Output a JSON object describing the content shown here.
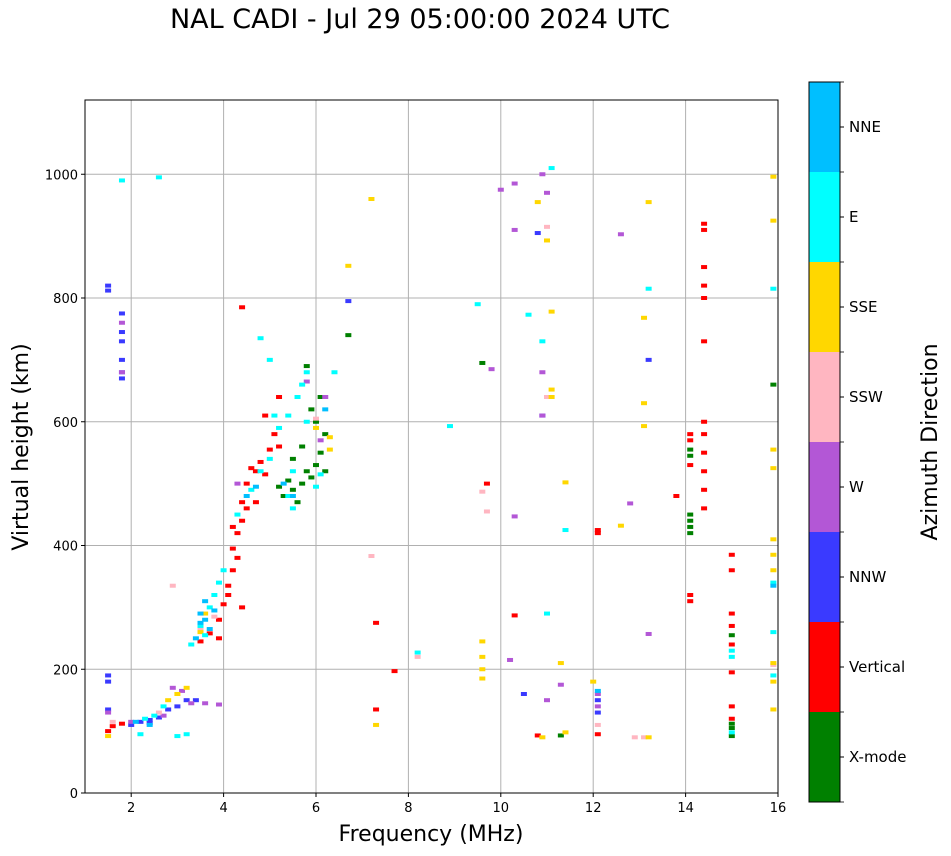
{
  "chart_data": {
    "type": "scatter",
    "title": "NAL CADI - Jul 29 05:00:00 2024 UTC",
    "xlabel": "Frequency (MHz)",
    "ylabel": "Virtual height (km)",
    "xlim": [
      1,
      16
    ],
    "ylim": [
      0,
      1120
    ],
    "x_ticks": [
      2,
      4,
      6,
      8,
      10,
      12,
      14,
      16
    ],
    "y_ticks": [
      0,
      200,
      400,
      600,
      800,
      1000
    ],
    "grid": true,
    "colorbar": {
      "title": "Azimuth Direction",
      "categories": [
        "X-mode",
        "Vertical",
        "NNW",
        "W",
        "SSW",
        "SSE",
        "E",
        "NNE"
      ],
      "colors": [
        "#008000",
        "#ff0000",
        "#3a3aff",
        "#b357d6",
        "#ffb6c1",
        "#ffd700",
        "#00ffff",
        "#00bfff"
      ]
    },
    "series": [
      {
        "name": "X-mode",
        "points": [
          [
            5.3,
            480
          ],
          [
            5.5,
            490
          ],
          [
            5.7,
            500
          ],
          [
            5.9,
            510
          ],
          [
            6.0,
            530
          ],
          [
            6.1,
            550
          ],
          [
            5.8,
            520
          ],
          [
            5.6,
            470
          ],
          [
            5.4,
            505
          ],
          [
            6.2,
            580
          ],
          [
            6.0,
            600
          ],
          [
            5.9,
            620
          ],
          [
            6.1,
            640
          ],
          [
            5.7,
            560
          ],
          [
            5.5,
            540
          ],
          [
            6.2,
            520
          ],
          [
            5.2,
            495
          ],
          [
            14.1,
            420
          ],
          [
            14.1,
            440
          ],
          [
            14.1,
            450
          ],
          [
            14.1,
            545
          ],
          [
            14.1,
            555
          ],
          [
            15.0,
            92
          ],
          [
            15.0,
            105
          ],
          [
            15.0,
            112
          ],
          [
            15.0,
            255
          ],
          [
            15.9,
            660
          ],
          [
            11.3,
            93
          ],
          [
            6.7,
            740
          ],
          [
            9.6,
            695
          ],
          [
            5.8,
            690
          ],
          [
            14.1,
            430
          ]
        ]
      },
      {
        "name": "Vertical",
        "points": [
          [
            1.5,
            100
          ],
          [
            1.6,
            108
          ],
          [
            1.8,
            112
          ],
          [
            3.5,
            245
          ],
          [
            3.7,
            258
          ],
          [
            3.9,
            280
          ],
          [
            4.0,
            305
          ],
          [
            4.1,
            335
          ],
          [
            4.2,
            360
          ],
          [
            4.2,
            395
          ],
          [
            4.3,
            420
          ],
          [
            4.4,
            440
          ],
          [
            4.4,
            470
          ],
          [
            4.5,
            500
          ],
          [
            4.6,
            525
          ],
          [
            4.8,
            535
          ],
          [
            4.9,
            515
          ],
          [
            5.0,
            555
          ],
          [
            5.2,
            560
          ],
          [
            4.7,
            470
          ],
          [
            4.4,
            300
          ],
          [
            4.3,
            380
          ],
          [
            4.5,
            460
          ],
          [
            4.2,
            430
          ],
          [
            4.9,
            610
          ],
          [
            5.2,
            640
          ],
          [
            3.9,
            250
          ],
          [
            4.1,
            320
          ],
          [
            4.7,
            520
          ],
          [
            5.1,
            580
          ],
          [
            14.4,
            460
          ],
          [
            14.4,
            490
          ],
          [
            14.4,
            520
          ],
          [
            14.4,
            550
          ],
          [
            14.4,
            580
          ],
          [
            14.4,
            600
          ],
          [
            14.1,
            530
          ],
          [
            14.1,
            570
          ],
          [
            14.1,
            580
          ],
          [
            14.1,
            310
          ],
          [
            14.1,
            320
          ],
          [
            14.4,
            730
          ],
          [
            14.4,
            800
          ],
          [
            14.4,
            820
          ],
          [
            14.4,
            850
          ],
          [
            14.4,
            910
          ],
          [
            14.4,
            920
          ],
          [
            15.0,
            360
          ],
          [
            15.0,
            385
          ],
          [
            15.0,
            270
          ],
          [
            15.0,
            290
          ],
          [
            15.0,
            240
          ],
          [
            15.0,
            195
          ],
          [
            15.0,
            140
          ],
          [
            15.0,
            120
          ],
          [
            12.1,
            95
          ],
          [
            12.1,
            420
          ],
          [
            12.1,
            425
          ],
          [
            9.7,
            500
          ],
          [
            10.3,
            287
          ],
          [
            7.3,
            275
          ],
          [
            7.3,
            135
          ],
          [
            7.7,
            197
          ],
          [
            13.8,
            480
          ],
          [
            10.8,
            93
          ],
          [
            4.4,
            785
          ]
        ]
      },
      {
        "name": "NNW",
        "points": [
          [
            1.5,
            820
          ],
          [
            1.5,
            812
          ],
          [
            1.5,
            190
          ],
          [
            1.5,
            180
          ],
          [
            1.8,
            775
          ],
          [
            1.8,
            745
          ],
          [
            1.8,
            730
          ],
          [
            1.8,
            700
          ],
          [
            1.8,
            680
          ],
          [
            1.8,
            670
          ],
          [
            2.2,
            115
          ],
          [
            2.4,
            118
          ],
          [
            2.6,
            122
          ],
          [
            2.8,
            135
          ],
          [
            3.0,
            140
          ],
          [
            3.2,
            150
          ],
          [
            3.4,
            150
          ],
          [
            10.8,
            905
          ],
          [
            13.2,
            700
          ],
          [
            10.9,
            610
          ],
          [
            1.5,
            135
          ],
          [
            2.0,
            110
          ],
          [
            12.1,
            150
          ],
          [
            12.1,
            130
          ],
          [
            2.4,
            113
          ],
          [
            6.7,
            795
          ],
          [
            10.5,
            160
          ]
        ]
      },
      {
        "name": "W",
        "points": [
          [
            1.5,
            130
          ],
          [
            2.0,
            115
          ],
          [
            2.7,
            125
          ],
          [
            2.9,
            170
          ],
          [
            3.1,
            165
          ],
          [
            3.3,
            145
          ],
          [
            3.6,
            145
          ],
          [
            3.9,
            143
          ],
          [
            10.0,
            975
          ],
          [
            10.3,
            985
          ],
          [
            10.3,
            910
          ],
          [
            11.0,
            970
          ],
          [
            10.9,
            1000
          ],
          [
            12.6,
            903
          ],
          [
            9.8,
            685
          ],
          [
            10.9,
            680
          ],
          [
            10.9,
            610
          ],
          [
            12.8,
            468
          ],
          [
            13.2,
            257
          ],
          [
            10.2,
            215
          ],
          [
            11.3,
            175
          ],
          [
            11.0,
            150
          ],
          [
            10.3,
            447
          ],
          [
            1.8,
            680
          ],
          [
            1.8,
            760
          ],
          [
            6.2,
            640
          ],
          [
            6.1,
            570
          ],
          [
            12.1,
            140
          ],
          [
            12.1,
            160
          ],
          [
            4.3,
            500
          ],
          [
            5.8,
            665
          ]
        ]
      },
      {
        "name": "SSW",
        "points": [
          [
            1.6,
            115
          ],
          [
            2.6,
            130
          ],
          [
            2.9,
            335
          ],
          [
            7.2,
            383
          ],
          [
            8.2,
            220
          ],
          [
            9.6,
            487
          ],
          [
            9.7,
            455
          ],
          [
            12.9,
            90
          ],
          [
            13.1,
            90
          ],
          [
            15.9,
            207
          ],
          [
            11.0,
            640
          ],
          [
            11.0,
            915
          ],
          [
            6.0,
            605
          ],
          [
            3.5,
            265
          ],
          [
            3.8,
            285
          ],
          [
            12.1,
            110
          ]
        ]
      },
      {
        "name": "SSE",
        "points": [
          [
            1.5,
            92
          ],
          [
            2.8,
            150
          ],
          [
            3.0,
            160
          ],
          [
            3.2,
            170
          ],
          [
            3.5,
            260
          ],
          [
            3.6,
            290
          ],
          [
            7.2,
            960
          ],
          [
            6.7,
            852
          ],
          [
            11.1,
            652
          ],
          [
            11.1,
            640
          ],
          [
            11.0,
            893
          ],
          [
            10.8,
            955
          ],
          [
            11.1,
            778
          ],
          [
            13.1,
            630
          ],
          [
            13.1,
            593
          ],
          [
            12.6,
            432
          ],
          [
            13.1,
            768
          ],
          [
            13.2,
            955
          ],
          [
            15.9,
            996
          ],
          [
            15.9,
            925
          ],
          [
            15.9,
            555
          ],
          [
            15.9,
            525
          ],
          [
            15.9,
            410
          ],
          [
            15.9,
            385
          ],
          [
            15.9,
            360
          ],
          [
            15.9,
            210
          ],
          [
            15.9,
            180
          ],
          [
            15.9,
            135
          ],
          [
            9.6,
            245
          ],
          [
            9.6,
            220
          ],
          [
            9.6,
            200
          ],
          [
            9.6,
            185
          ],
          [
            11.3,
            210
          ],
          [
            11.4,
            502
          ],
          [
            12.0,
            180
          ],
          [
            7.3,
            110
          ],
          [
            10.9,
            90
          ],
          [
            11.4,
            98
          ],
          [
            13.2,
            90
          ],
          [
            6.3,
            575
          ],
          [
            6.3,
            555
          ],
          [
            6.0,
            590
          ]
        ]
      },
      {
        "name": "E",
        "points": [
          [
            1.8,
            990
          ],
          [
            2.6,
            995
          ],
          [
            2.2,
            95
          ],
          [
            3.0,
            92
          ],
          [
            3.2,
            95
          ],
          [
            2.3,
            120
          ],
          [
            2.5,
            125
          ],
          [
            2.7,
            140
          ],
          [
            3.3,
            240
          ],
          [
            3.5,
            270
          ],
          [
            3.7,
            300
          ],
          [
            3.8,
            320
          ],
          [
            3.9,
            340
          ],
          [
            4.0,
            360
          ],
          [
            3.6,
            255
          ],
          [
            4.3,
            450
          ],
          [
            4.6,
            490
          ],
          [
            4.8,
            520
          ],
          [
            5.0,
            540
          ],
          [
            5.2,
            590
          ],
          [
            5.4,
            610
          ],
          [
            5.6,
            640
          ],
          [
            5.7,
            660
          ],
          [
            5.8,
            680
          ],
          [
            5.0,
            700
          ],
          [
            4.8,
            735
          ],
          [
            5.5,
            520
          ],
          [
            5.4,
            480
          ],
          [
            5.5,
            460
          ],
          [
            5.8,
            600
          ],
          [
            6.4,
            680
          ],
          [
            5.1,
            610
          ],
          [
            11.1,
            1010
          ],
          [
            10.9,
            730
          ],
          [
            10.6,
            773
          ],
          [
            9.5,
            790
          ],
          [
            13.2,
            815
          ],
          [
            15.9,
            815
          ],
          [
            11.0,
            290
          ],
          [
            11.4,
            425
          ],
          [
            8.9,
            593
          ],
          [
            8.2,
            227
          ],
          [
            15.0,
            230
          ],
          [
            15.0,
            220
          ],
          [
            15.9,
            260
          ],
          [
            15.9,
            190
          ],
          [
            15.9,
            340
          ],
          [
            15.0,
            98
          ],
          [
            6.0,
            495
          ],
          [
            6.1,
            515
          ]
        ]
      },
      {
        "name": "NNE",
        "points": [
          [
            3.4,
            250
          ],
          [
            3.5,
            275
          ],
          [
            3.6,
            280
          ],
          [
            3.7,
            265
          ],
          [
            3.8,
            295
          ],
          [
            3.6,
            310
          ],
          [
            3.5,
            290
          ],
          [
            2.4,
            110
          ],
          [
            2.1,
            115
          ],
          [
            4.5,
            480
          ],
          [
            4.7,
            495
          ],
          [
            5.3,
            500
          ],
          [
            5.5,
            480
          ],
          [
            6.2,
            620
          ],
          [
            12.1,
            165
          ],
          [
            15.9,
            335
          ]
        ]
      }
    ]
  }
}
